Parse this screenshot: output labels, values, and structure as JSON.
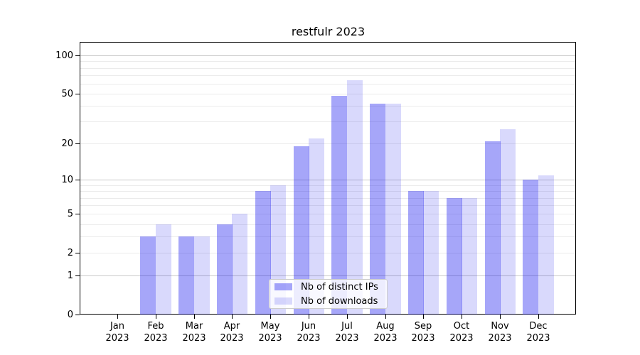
{
  "title": "restfulr 2023",
  "chart_data": {
    "type": "bar",
    "title": "restfulr 2023",
    "categories": [
      "Jan",
      "Feb",
      "Mar",
      "Apr",
      "May",
      "Jun",
      "Jul",
      "Aug",
      "Sep",
      "Oct",
      "Nov",
      "Dec"
    ],
    "category_year": "2023",
    "series": [
      {
        "name": "Nb of distinct IPs",
        "color": "rgba(0,0,238,0.35)",
        "values": [
          0,
          3,
          3,
          4,
          8,
          19,
          48,
          42,
          8,
          7,
          21,
          10
        ]
      },
      {
        "name": "Nb of downloads",
        "color": "rgba(0,0,238,0.15)",
        "values": [
          0,
          4,
          3,
          5,
          9,
          22,
          64,
          42,
          8,
          7,
          26,
          11
        ]
      }
    ],
    "yscale": "log1p",
    "ylim": [
      0,
      126
    ],
    "yticks": [
      0,
      1,
      2,
      5,
      10,
      20,
      50,
      100
    ],
    "ytick_labels": [
      "0",
      "1",
      "2",
      "5",
      "10",
      "20",
      "50",
      "100"
    ],
    "major_gridlines": [
      1,
      10,
      100
    ],
    "minor_gridlines": [
      2,
      3,
      4,
      5,
      6,
      7,
      8,
      9,
      20,
      30,
      40,
      50,
      60,
      70,
      80,
      90
    ],
    "grid": "on",
    "legend_position": "lower center",
    "xlabel": "",
    "ylabel": ""
  },
  "legend": {
    "entries": [
      "Nb of distinct IPs",
      "Nb of downloads"
    ]
  },
  "colors": {
    "bar_dark": "rgba(0,0,238,0.35)",
    "bar_light": "rgba(0,0,238,0.15)",
    "grid_major": "#c9c9c9",
    "grid_minor": "#ebebeb",
    "spine": "#000000",
    "legend_border": "#cccccc"
  }
}
